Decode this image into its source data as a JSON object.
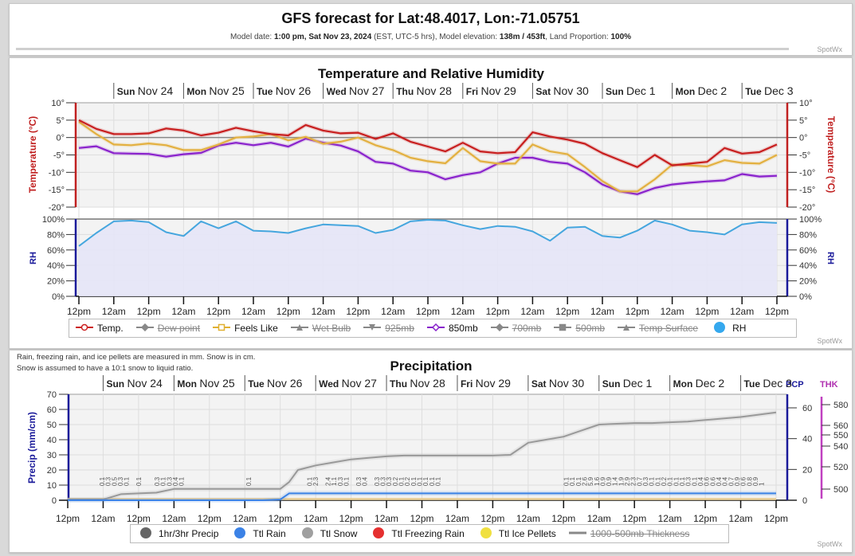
{
  "header": {
    "title": "GFS forecast for Lat:48.4017, Lon:-71.05751",
    "sub_model_date_label": "Model date: ",
    "sub_model_date": "1:00 pm, Sat Nov 23, 2024",
    "sub_tz": " (EST, UTC-5 hrs), Model elevation: ",
    "sub_elevation": "138m / 453ft",
    "sub_land_label": ", Land Proportion: ",
    "sub_land": "100%",
    "brand": "SpotWx"
  },
  "days": [
    {
      "dow": "Sun",
      "date": "Nov 24"
    },
    {
      "dow": "Mon",
      "date": "Nov 25"
    },
    {
      "dow": "Tue",
      "date": "Nov 26"
    },
    {
      "dow": "Wed",
      "date": "Nov 27"
    },
    {
      "dow": "Thu",
      "date": "Nov 28"
    },
    {
      "dow": "Fri",
      "date": "Nov 29"
    },
    {
      "dow": "Sat",
      "date": "Nov 30"
    },
    {
      "dow": "Sun",
      "date": "Dec 1"
    },
    {
      "dow": "Mon",
      "date": "Dec 2"
    },
    {
      "dow": "Tue",
      "date": "Dec 3"
    }
  ],
  "temp_legend": [
    {
      "label": "Temp.",
      "color": "#cc2222",
      "symbol": "circle-line",
      "active": true
    },
    {
      "label": "Dew point",
      "color": "#888888",
      "symbol": "diamond-line",
      "active": false
    },
    {
      "label": "Feels Like",
      "color": "#e0b030",
      "symbol": "square-line",
      "active": true
    },
    {
      "label": "Wet Bulb",
      "color": "#888888",
      "symbol": "triangle-line",
      "active": false
    },
    {
      "label": "925mb",
      "color": "#888888",
      "symbol": "triangle-down-line",
      "active": false
    },
    {
      "label": "850mb",
      "color": "#8822cc",
      "symbol": "diamond-line",
      "active": true
    },
    {
      "label": "700mb",
      "color": "#888888",
      "symbol": "diamond-line",
      "active": false
    },
    {
      "label": "500mb",
      "color": "#888888",
      "symbol": "square-line",
      "active": false
    },
    {
      "label": "Temp Surface",
      "color": "#888888",
      "symbol": "triangle-line",
      "active": false
    },
    {
      "label": "RH",
      "color": "#35a8ee",
      "symbol": "dot",
      "active": true
    }
  ],
  "precip_legend": [
    {
      "label": "1hr/3hr Precip",
      "color": "#666666",
      "symbol": "dot",
      "active": true
    },
    {
      "label": "Ttl Rain",
      "color": "#3b82e6",
      "symbol": "dot",
      "active": true
    },
    {
      "label": "Ttl Snow",
      "color": "#a0a0a0",
      "symbol": "dot",
      "active": true
    },
    {
      "label": "Ttl Freezing Rain",
      "color": "#e53030",
      "symbol": "dot",
      "active": true
    },
    {
      "label": "Ttl Ice Pellets",
      "color": "#f0e040",
      "symbol": "dot",
      "active": true
    },
    {
      "label": "1000-500mb Thickness",
      "color": "#888888",
      "symbol": "line",
      "active": false
    }
  ],
  "precip_note": [
    "Rain, freezing rain, and ice pellets are measured in mm. Snow is in cm.",
    "Snow is assumed to have a 10:1 snow to liquid ratio."
  ],
  "chart_data": [
    {
      "type": "line",
      "title": "Temperature and Relative Humidity",
      "xlabel": "",
      "x_tick_labels": [
        "12pm",
        "12am",
        "12pm",
        "12am",
        "12pm",
        "12am",
        "12pm",
        "12am",
        "12pm",
        "12am",
        "12pm",
        "12am",
        "12pm",
        "12am",
        "12pm",
        "12am",
        "12pm",
        "12am",
        "12pm",
        "12am",
        "12pm"
      ],
      "x_range_hours": [
        0,
        240
      ],
      "temperature_axis": {
        "label": "Temperature (°C)",
        "ylim": [
          -20,
          10
        ],
        "ticks": [
          "10°",
          "5°",
          "0°",
          "-5°",
          "-10°",
          "-15°",
          "-20°"
        ]
      },
      "rh_axis": {
        "label": "RH",
        "ylim": [
          0,
          100
        ],
        "ticks": [
          "100%",
          "80%",
          "60%",
          "40%",
          "20%",
          "0%"
        ]
      },
      "grid": true,
      "legend_placement": "bottom",
      "x_hours": [
        0,
        6,
        12,
        18,
        24,
        30,
        36,
        42,
        48,
        54,
        60,
        66,
        72,
        78,
        84,
        90,
        96,
        102,
        108,
        114,
        120,
        126,
        132,
        138,
        144,
        150,
        156,
        162,
        168,
        174,
        180,
        186,
        192,
        198,
        204,
        210,
        216,
        222,
        228,
        234,
        240
      ],
      "series": [
        {
          "name": "Temp.",
          "unit": "°C",
          "values": [
            5,
            2.5,
            1,
            1,
            1.2,
            2.6,
            2,
            0.6,
            1.4,
            2.8,
            1.8,
            1,
            0.6,
            3.6,
            2,
            1.2,
            1.4,
            -0.4,
            1.2,
            -1.2,
            -2.6,
            -4,
            -1.5,
            -4,
            -4.5,
            -4.2,
            1.5,
            0.3,
            -0.6,
            -1.8,
            -4.5,
            -6.5,
            -8.5,
            -5,
            -8,
            -7.5,
            -7,
            -3,
            -4.6,
            -4.2,
            -2
          ]
        },
        {
          "name": "Feels Like",
          "unit": "°C",
          "values": [
            4.5,
            1,
            -2,
            -2.2,
            -1.7,
            -2.2,
            -3.6,
            -3.6,
            -2,
            0,
            0.3,
            1,
            -0.8,
            0.2,
            -1.8,
            -1.2,
            0,
            -2.2,
            -3.6,
            -5.8,
            -6.8,
            -7.4,
            -3,
            -6.8,
            -7.5,
            -7.5,
            -2,
            -4,
            -4.8,
            -8.5,
            -12.5,
            -15.5,
            -15.5,
            -12,
            -7.8,
            -8,
            -8.3,
            -6.5,
            -7.3,
            -7.5,
            -5
          ]
        },
        {
          "name": "850mb",
          "unit": "°C",
          "values": [
            -3,
            -2.5,
            -4.5,
            -4.6,
            -4.7,
            -5.5,
            -4.8,
            -4.4,
            -2.3,
            -1.5,
            -2.2,
            -1.5,
            -2.6,
            -0.3,
            -1.5,
            -2.3,
            -4,
            -7,
            -7.5,
            -9.5,
            -10,
            -12,
            -10.8,
            -10,
            -7.5,
            -5.8,
            -5.8,
            -7,
            -7.5,
            -10,
            -13.5,
            -15.5,
            -16.3,
            -14.5,
            -13.5,
            -13,
            -12.6,
            -12.3,
            -10.5,
            -11.2,
            -11
          ]
        },
        {
          "name": "RH",
          "unit": "%",
          "values": [
            65,
            82,
            97,
            98,
            96,
            83,
            78,
            97,
            88,
            97,
            85,
            84,
            82,
            88,
            93,
            92,
            91,
            82,
            86,
            97,
            99,
            98,
            92,
            87,
            91,
            90,
            84,
            72,
            89,
            90,
            78,
            76,
            85,
            98,
            93,
            85,
            83,
            80,
            93,
            96,
            95
          ]
        }
      ]
    },
    {
      "type": "line",
      "title": "Precipitation",
      "x_tick_labels": [
        "12pm",
        "12am",
        "12pm",
        "12am",
        "12pm",
        "12am",
        "12pm",
        "12am",
        "12pm",
        "12am",
        "12pm",
        "12am",
        "12pm",
        "12am",
        "12pm",
        "12am",
        "12pm",
        "12am",
        "12pm",
        "12am",
        "12pm"
      ],
      "x_range_hours": [
        0,
        240
      ],
      "precip_axis": {
        "label": "Precip (mm/cm)",
        "ylim": [
          0,
          70
        ],
        "ticks": [
          "70",
          "60",
          "50",
          "40",
          "30",
          "20",
          "10",
          "0"
        ]
      },
      "pcp_axis": {
        "label": "PCP",
        "ticks": [
          "60",
          "40",
          "20",
          "0"
        ]
      },
      "thickness_axis": {
        "label": "THK",
        "ticks": [
          "580",
          "560",
          "550",
          "540",
          "520",
          "500"
        ]
      },
      "legend_placement": "bottom",
      "x_hours": [
        0,
        6,
        12,
        18,
        24,
        30,
        36,
        42,
        48,
        54,
        60,
        66,
        72,
        75,
        78,
        84,
        90,
        96,
        102,
        108,
        114,
        120,
        126,
        132,
        138,
        144,
        150,
        156,
        162,
        168,
        174,
        180,
        186,
        192,
        198,
        204,
        210,
        216,
        222,
        228,
        234,
        240
      ],
      "series": [
        {
          "name": "Ttl Snow",
          "unit": "cm",
          "values": [
            0.5,
            0.5,
            0.5,
            4,
            4.5,
            5,
            7.5,
            7.5,
            7.5,
            7.5,
            7.5,
            7.5,
            7.5,
            12,
            20,
            23,
            25,
            27,
            28,
            29,
            29.5,
            29.5,
            29.5,
            29.5,
            29.5,
            29.5,
            30,
            38,
            40,
            42,
            46,
            50,
            50.5,
            51,
            51,
            51.5,
            52,
            53,
            54,
            55,
            56.5,
            58
          ]
        },
        {
          "name": "Ttl Rain",
          "unit": "mm",
          "values": [
            0,
            0,
            0,
            0,
            0,
            0,
            0,
            0,
            0,
            0,
            0,
            0,
            0.5,
            4.5,
            4.5,
            4.5,
            4.5,
            4.5,
            4.5,
            4.5,
            4.5,
            4.5,
            4.5,
            4.5,
            4.5,
            4.5,
            4.5,
            4.5,
            4.5,
            4.5,
            4.5,
            4.5,
            4.5,
            4.5,
            4.5,
            4.5,
            4.5,
            4.5,
            4.5,
            4.5,
            4.5,
            4.5
          ]
        },
        {
          "name": "Ttl Freezing Rain",
          "unit": "mm",
          "values": [
            0,
            0,
            0,
            0,
            0,
            0,
            0,
            0,
            0,
            0,
            0,
            0,
            0,
            0,
            0,
            0,
            0,
            0,
            0,
            0,
            0,
            0,
            0,
            0,
            0,
            0,
            0,
            0,
            0,
            0,
            0,
            0,
            0,
            0,
            0,
            0,
            0,
            0,
            0,
            0,
            0,
            0
          ]
        },
        {
          "name": "Ttl Ice Pellets",
          "unit": "mm",
          "values": [
            0,
            0,
            0,
            0,
            0,
            0,
            0,
            0,
            0,
            0,
            0,
            0,
            0,
            0,
            0,
            0,
            0,
            0,
            0,
            0,
            0,
            0,
            0,
            0,
            0,
            0,
            0,
            0,
            0,
            0,
            0,
            0,
            0,
            0,
            0,
            0,
            0,
            0,
            0,
            0,
            0,
            0
          ]
        }
      ],
      "period_precip_labels": [
        {
          "hour": 18,
          "value": "0.1"
        },
        {
          "hour": 21,
          "value": "0.3"
        },
        {
          "hour": 24,
          "value": "0.5"
        },
        {
          "hour": 27,
          "value": "0.3"
        },
        {
          "hour": 30,
          "value": "0.1"
        },
        {
          "hour": 36,
          "value": "0.1"
        },
        {
          "hour": 45,
          "value": "0.3"
        },
        {
          "hour": 48,
          "value": "0.1"
        },
        {
          "hour": 51,
          "value": "0.3"
        },
        {
          "hour": 54,
          "value": "0.4"
        },
        {
          "hour": 57,
          "value": "0.1"
        },
        {
          "hour": 90,
          "value": "0.1"
        },
        {
          "hour": 120,
          "value": "0.1"
        },
        {
          "hour": 123,
          "value": "2.3"
        },
        {
          "hour": 129,
          "value": "2.4"
        },
        {
          "hour": 132,
          "value": "1.1"
        },
        {
          "hour": 135,
          "value": "0.3"
        },
        {
          "hour": 138,
          "value": "0.1"
        },
        {
          "hour": 144,
          "value": "0.3"
        },
        {
          "hour": 147,
          "value": "0.4"
        },
        {
          "hour": 153,
          "value": "0.3"
        },
        {
          "hour": 156,
          "value": "0.3"
        },
        {
          "hour": 159,
          "value": "0.3"
        },
        {
          "hour": 162,
          "value": "0.2"
        },
        {
          "hour": 165,
          "value": "0.1"
        },
        {
          "hour": 168,
          "value": "0.2"
        },
        {
          "hour": 171,
          "value": "0.1"
        },
        {
          "hour": 174,
          "value": "0.1"
        },
        {
          "hour": 177,
          "value": "0.1"
        },
        {
          "hour": 180,
          "value": "0.1"
        },
        {
          "hour": 183,
          "value": "0.1"
        },
        {
          "hour": 246,
          "value": "0.1"
        },
        {
          "hour": 249,
          "value": "0.1"
        },
        {
          "hour": 252,
          "value": "0.1"
        },
        {
          "hour": 255,
          "value": "2.6"
        },
        {
          "hour": 258,
          "value": "5.9"
        },
        {
          "hour": 261,
          "value": "1.6"
        },
        {
          "hour": 264,
          "value": "0.9"
        },
        {
          "hour": 267,
          "value": "0.9"
        },
        {
          "hour": 270,
          "value": "1.4"
        },
        {
          "hour": 273,
          "value": "1.9"
        },
        {
          "hour": 276,
          "value": "2.9"
        },
        {
          "hour": 279,
          "value": "2.3"
        },
        {
          "hour": 282,
          "value": "0.7"
        },
        {
          "hour": 285,
          "value": "0.3"
        },
        {
          "hour": 288,
          "value": "0.1"
        },
        {
          "hour": 291,
          "value": "0.1"
        },
        {
          "hour": 294,
          "value": "0.2"
        },
        {
          "hour": 297,
          "value": "0.1"
        },
        {
          "hour": 300,
          "value": "0.1"
        },
        {
          "hour": 303,
          "value": "0.1"
        },
        {
          "hour": 306,
          "value": "0.3"
        },
        {
          "hour": 309,
          "value": "0.1"
        },
        {
          "hour": 312,
          "value": "0.4"
        },
        {
          "hour": 315,
          "value": "0.6"
        },
        {
          "hour": 318,
          "value": "0.6"
        },
        {
          "hour": 321,
          "value": "0.4"
        },
        {
          "hour": 324,
          "value": "0.4"
        },
        {
          "hour": 327,
          "value": "0.7"
        },
        {
          "hour": 330,
          "value": "0.9"
        },
        {
          "hour": 333,
          "value": "0.6"
        },
        {
          "hour": 336,
          "value": "0.8"
        },
        {
          "hour": 339,
          "value": "0.9"
        },
        {
          "hour": 342,
          "value": "1"
        }
      ]
    }
  ]
}
